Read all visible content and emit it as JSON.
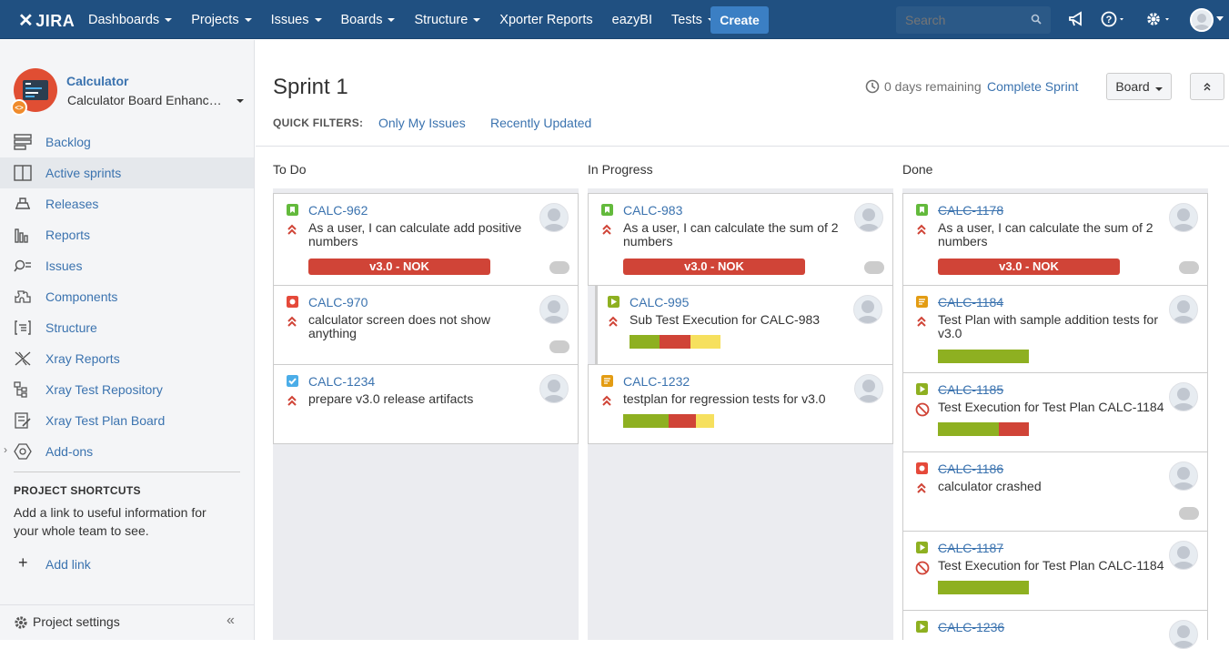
{
  "header": {
    "logo": "JIRA",
    "nav": [
      {
        "label": "Dashboards",
        "dropdown": true
      },
      {
        "label": "Projects",
        "dropdown": true
      },
      {
        "label": "Issues",
        "dropdown": true
      },
      {
        "label": "Boards",
        "dropdown": true
      },
      {
        "label": "Structure",
        "dropdown": true
      },
      {
        "label": "Xporter Reports",
        "dropdown": false
      },
      {
        "label": "eazyBI",
        "dropdown": false
      },
      {
        "label": "Tests",
        "dropdown": true
      }
    ],
    "create_label": "Create",
    "search_placeholder": "Search"
  },
  "sidebar": {
    "project_name": "Calculator",
    "board_name": "Calculator Board Enhancements",
    "items": [
      {
        "label": "Backlog",
        "icon": "backlog-icon"
      },
      {
        "label": "Active sprints",
        "icon": "active-sprints-icon",
        "active": true
      },
      {
        "label": "Releases",
        "icon": "releases-icon"
      },
      {
        "label": "Reports",
        "icon": "reports-icon"
      },
      {
        "label": "Issues",
        "icon": "issues-icon"
      },
      {
        "label": "Components",
        "icon": "components-icon"
      },
      {
        "label": "Structure",
        "icon": "structure-icon"
      },
      {
        "label": "Xray Reports",
        "icon": "xray-reports-icon"
      },
      {
        "label": "Xray Test Repository",
        "icon": "xray-repository-icon"
      },
      {
        "label": "Xray Test Plan Board",
        "icon": "xray-plan-board-icon"
      },
      {
        "label": "Add-ons",
        "icon": "addons-icon"
      }
    ],
    "shortcuts_heading": "PROJECT SHORTCUTS",
    "shortcuts_text": "Add a link to useful information for your whole team to see.",
    "add_link": "Add link",
    "settings": "Project settings"
  },
  "sprint": {
    "title": "Sprint 1",
    "days_remaining": "0 days remaining",
    "complete_label": "Complete Sprint",
    "board_label": "Board",
    "quick_filters_label": "QUICK FILTERS:",
    "filters": [
      "Only My Issues",
      "Recently Updated"
    ]
  },
  "columns": [
    {
      "name": "To Do"
    },
    {
      "name": "In Progress"
    },
    {
      "name": "Done"
    }
  ],
  "cards": {
    "todo": [
      {
        "key": "CALC-962",
        "summary": "As a user, I can calculate add positive numbers",
        "type": "story",
        "badge": "v3.0 - NOK"
      },
      {
        "key": "CALC-970",
        "summary": "calculator screen does not show anything",
        "type": "bug"
      },
      {
        "key": "CALC-1234",
        "summary": "prepare v3.0 release artifacts",
        "type": "task"
      }
    ],
    "progress": [
      {
        "key": "CALC-983",
        "summary": "As a user, I can calculate the sum of 2 numbers",
        "type": "story",
        "badge": "v3.0 - NOK"
      },
      {
        "key": "CALC-995",
        "summary": "Sub Test Execution for CALC-983",
        "type": "sub-test-execution"
      },
      {
        "key": "CALC-1232",
        "summary": "testplan for regression tests for v3.0",
        "type": "test-plan"
      }
    ],
    "done": [
      {
        "key": "CALC-1178",
        "summary": "As a user, I can calculate the sum of 2 numbers",
        "type": "story",
        "badge": "v3.0 - NOK"
      },
      {
        "key": "CALC-1184",
        "summary": "Test Plan with sample addition tests for v3.0",
        "type": "test-plan"
      },
      {
        "key": "CALC-1185",
        "summary": "Test Execution for Test Plan CALC-1184",
        "type": "test-execution"
      },
      {
        "key": "CALC-1186",
        "summary": "calculator crashed",
        "type": "bug"
      },
      {
        "key": "CALC-1187",
        "summary": "Test Execution for Test Plan CALC-1184",
        "type": "test-execution"
      },
      {
        "key": "CALC-1236",
        "summary": "",
        "type": "test-execution"
      }
    ]
  },
  "colors": {
    "header": "#205081",
    "link": "#3b73af",
    "nok": "#d04437",
    "pass": "#8eb021",
    "fail": "#d04437",
    "todo": "#f6e05e",
    "story": "#63ba3c",
    "bug": "#e5493a",
    "task": "#4bade8",
    "test_plan": "#e39c13"
  }
}
